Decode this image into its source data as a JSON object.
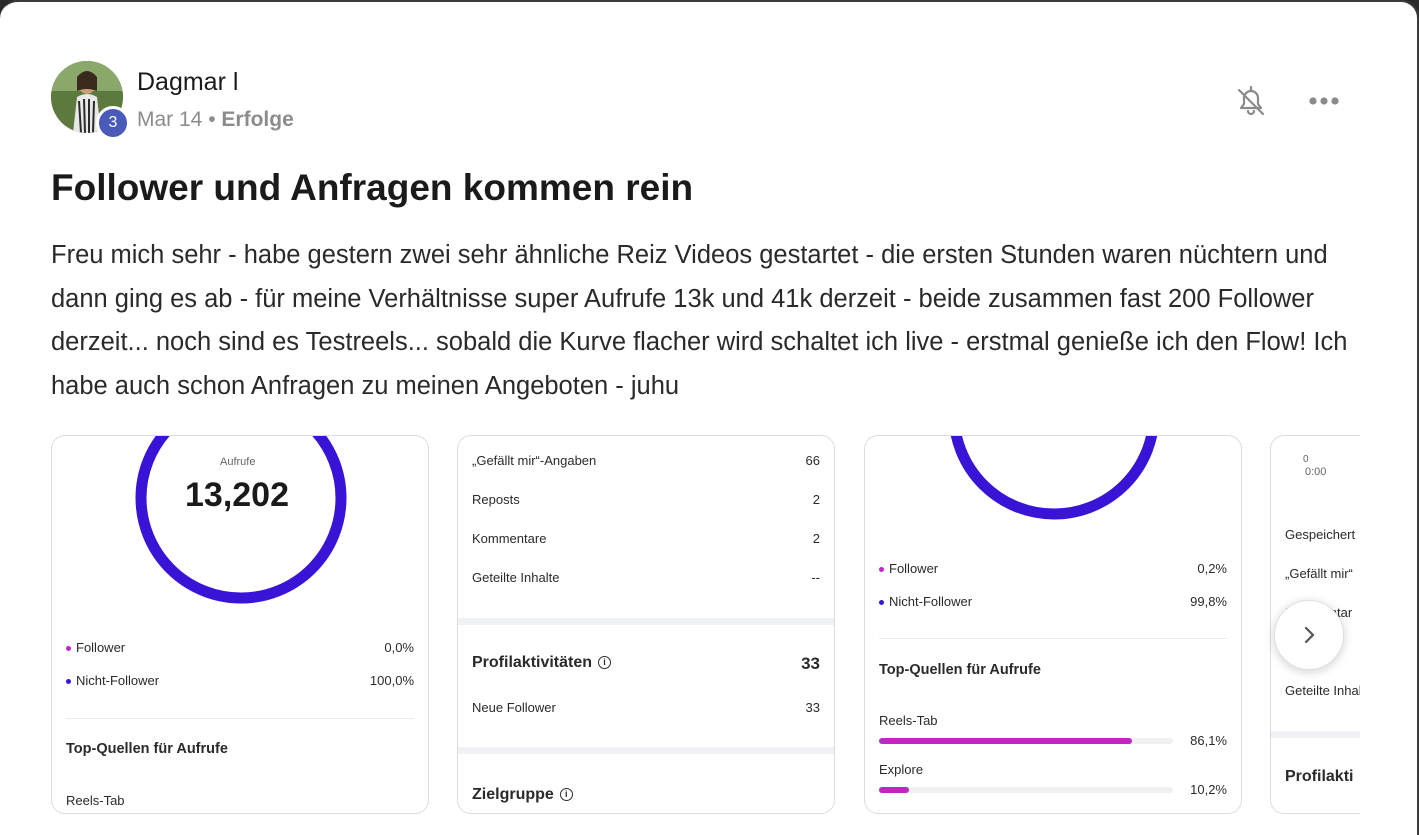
{
  "post": {
    "author": "Dagmar l",
    "level": "3",
    "date": "Mar 14",
    "separator": "•",
    "category": "Erfolge",
    "title": "Follower und Anfragen kommen rein",
    "body": "Freu mich sehr - habe gestern zwei sehr ähnliche Reiz Videos gestartet - die ersten Stunden waren nüchtern und dann ging es ab - für meine Verhältnisse super Aufrufe 13k und 41k derzeit - beide zusammen fast 200 Follower derzeit... noch sind es Testreels... sobald die Kurve flacher wird schaltet ich live - erstmal genieße ich den Flow! Ich habe auch schon Anfragen zu meinen Angeboten - juhu"
  },
  "icons": {
    "bell": "bell-off-icon",
    "more": "more-horizontal-icon",
    "next": "chevron-right-icon"
  },
  "colors": {
    "ring": "#3a14d6",
    "bar": "#c026c7",
    "badge": "#4a5ab8"
  },
  "screenshots": [
    {
      "ring_label": "Aufrufe",
      "ring_value": "13,202",
      "rows": [
        {
          "label": "Follower",
          "value": "0,0%"
        },
        {
          "label": "Nicht-Follower",
          "value": "100,0%"
        }
      ],
      "section_title": "Top-Quellen für Aufrufe",
      "bar_label": "Reels-Tab"
    },
    {
      "rows": [
        {
          "label": "„Gefällt mir“-Angaben",
          "value": "66"
        },
        {
          "label": "Reposts",
          "value": "2"
        },
        {
          "label": "Kommentare",
          "value": "2"
        },
        {
          "label": "Geteilte Inhalte",
          "value": "--"
        }
      ],
      "profile_title": "Profilaktivitäten",
      "profile_value": "33",
      "new_followers_label": "Neue Follower",
      "new_followers_value": "33",
      "audience_title": "Zielgruppe"
    },
    {
      "rows": [
        {
          "label": "Follower",
          "value": "0,2%"
        },
        {
          "label": "Nicht-Follower",
          "value": "99,8%"
        }
      ],
      "section_title": "Top-Quellen für Aufrufe",
      "bars": [
        {
          "label": "Reels-Tab",
          "value": "86,1%",
          "fraction": 0.861
        },
        {
          "label": "Explore",
          "value": "10,2%",
          "fraction": 0.102
        }
      ]
    },
    {
      "axis_zero": "0",
      "axis_time": "0:00",
      "rows": [
        "Gespeichert",
        "„Gefällt mir“",
        "Kommentar",
        "Geteilte Inhalte"
      ],
      "profile_title": "Profilakti"
    }
  ]
}
